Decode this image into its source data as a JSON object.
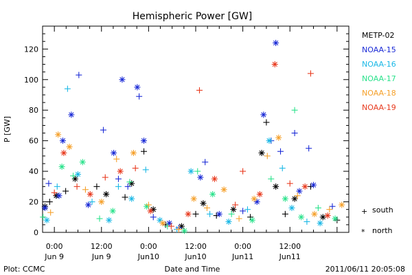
{
  "chart_data": {
    "type": "scatter",
    "title": "Hemispheric Power [GW]",
    "ylabel": "P [GW]",
    "xlabel": "Date and Time",
    "ylim": [
      0,
      135
    ],
    "xlim": [
      -0.125,
      3.125
    ],
    "yticks": [
      0,
      20,
      40,
      60,
      80,
      100,
      120
    ],
    "xticks": [
      {
        "value": 0.0,
        "line1": "0:00",
        "line2": "Jun 9"
      },
      {
        "value": 0.5,
        "line1": "12:00",
        "line2": "Jun 9"
      },
      {
        "value": 1.0,
        "line1": "0:00",
        "line2": "Jun10"
      },
      {
        "value": 1.5,
        "line1": "12:00",
        "line2": "Jun10"
      },
      {
        "value": 2.0,
        "line1": "0:00",
        "line2": "Jun11"
      },
      {
        "value": 2.5,
        "line1": "12:00",
        "line2": "Jun11"
      }
    ],
    "footer_left": "Plot: CCMC",
    "footer_right": "2011/06/11 20:05:08",
    "symbol_legend": [
      {
        "symbol": "plus",
        "glyph": "+",
        "label": "south"
      },
      {
        "symbol": "star",
        "glyph": "*",
        "label": "north"
      }
    ],
    "series": [
      {
        "name": "METP-02",
        "color": "#000000",
        "x": [
          -0.1,
          -0.05,
          0.02,
          0.12,
          0.22,
          0.45,
          0.55,
          0.75,
          0.82,
          0.95,
          1.05,
          1.18,
          1.35,
          1.5,
          1.58,
          1.72,
          1.9,
          2.08,
          2.2,
          2.25,
          2.35,
          2.45,
          2.55,
          2.72,
          2.85,
          3.0
        ],
        "y": [
          17,
          20,
          24,
          27,
          35,
          30,
          25,
          23,
          32,
          53,
          15,
          5,
          4,
          12,
          19,
          11,
          15,
          10,
          52,
          72,
          30,
          12,
          22,
          30,
          10,
          8
        ],
        "sym": [
          "star",
          "plus",
          "star",
          "plus",
          "star",
          "plus",
          "star",
          "plus",
          "star",
          "plus",
          "star",
          "plus",
          "star",
          "plus",
          "star",
          "plus",
          "star",
          "plus",
          "star",
          "plus",
          "star",
          "plus",
          "star",
          "plus",
          "star",
          "plus"
        ]
      },
      {
        "name": "NOAA-15",
        "color": "#1a2ad6",
        "x": [
          -0.1,
          -0.06,
          0.05,
          0.09,
          0.18,
          0.26,
          0.36,
          0.52,
          0.63,
          0.68,
          0.72,
          0.78,
          0.88,
          0.9,
          0.95,
          1.05,
          1.22,
          1.32,
          1.55,
          1.6,
          1.75,
          2.0,
          2.15,
          2.22,
          2.3,
          2.35,
          2.4,
          2.55,
          2.6,
          2.7,
          2.75,
          2.95
        ],
        "y": [
          16,
          32,
          24,
          60,
          77,
          103,
          18,
          67,
          52,
          35,
          100,
          30,
          95,
          89,
          60,
          10,
          6,
          3,
          36,
          46,
          12,
          14,
          20,
          77,
          60,
          124,
          53,
          65,
          27,
          55,
          31,
          17
        ],
        "sym": [
          "star",
          "plus",
          "star",
          "star",
          "star",
          "plus",
          "star",
          "plus",
          "star",
          "plus",
          "star",
          "plus",
          "star",
          "plus",
          "star",
          "plus",
          "star",
          "plus",
          "star",
          "plus",
          "star",
          "plus",
          "star",
          "star",
          "plus",
          "star",
          "plus",
          "plus",
          "star",
          "plus",
          "star",
          "plus"
        ]
      },
      {
        "name": "NOAA-16",
        "color": "#1ab8e6",
        "x": [
          -0.08,
          0.03,
          0.14,
          0.25,
          0.4,
          0.58,
          0.68,
          0.82,
          0.97,
          1.12,
          1.3,
          1.45,
          1.65,
          1.85,
          2.05,
          2.28,
          2.42,
          2.52,
          2.68,
          2.82
        ],
        "y": [
          8,
          30,
          94,
          38,
          20,
          8,
          30,
          22,
          41,
          8,
          2,
          40,
          12,
          7,
          15,
          60,
          42,
          16,
          7,
          6
        ],
        "sym": [
          "star",
          "plus",
          "plus",
          "star",
          "plus",
          "star",
          "plus",
          "star",
          "plus",
          "star",
          "plus",
          "star",
          "plus",
          "star",
          "plus",
          "star",
          "plus",
          "star",
          "plus",
          "star"
        ]
      },
      {
        "name": "NOAA-17",
        "color": "#29e28b",
        "x": [
          -0.12,
          0.08,
          0.2,
          0.3,
          0.48,
          0.62,
          0.8,
          0.98,
          1.2,
          1.38,
          1.52,
          1.68,
          1.88,
          2.1,
          2.3,
          2.45,
          2.55,
          2.62,
          2.8,
          2.98
        ],
        "y": [
          10,
          43,
          37,
          46,
          9,
          14,
          33,
          17,
          4,
          1,
          40,
          25,
          12,
          8,
          35,
          22,
          80,
          10,
          16,
          9
        ],
        "sym": [
          "plus",
          "star",
          "plus",
          "star",
          "plus",
          "star",
          "plus",
          "star",
          "plus",
          "star",
          "plus",
          "star",
          "plus",
          "star",
          "plus",
          "star",
          "plus",
          "star",
          "plus",
          "star"
        ]
      },
      {
        "name": "NOAA-18",
        "color": "#f5a02a",
        "x": [
          -0.04,
          0.04,
          0.16,
          0.33,
          0.5,
          0.66,
          0.84,
          1.0,
          1.15,
          1.32,
          1.48,
          1.62,
          1.8,
          1.96,
          2.12,
          2.26,
          2.38,
          2.58,
          2.76,
          2.92,
          3.05
        ],
        "y": [
          13,
          64,
          56,
          28,
          20,
          48,
          52,
          18,
          6,
          2,
          22,
          16,
          28,
          9,
          22,
          50,
          62,
          24,
          12,
          15,
          18
        ],
        "sym": [
          "plus",
          "star",
          "star",
          "plus",
          "star",
          "plus",
          "star",
          "plus",
          "star",
          "plus",
          "star",
          "plus",
          "star",
          "plus",
          "star",
          "plus",
          "star",
          "plus",
          "star",
          "plus",
          "star"
        ]
      },
      {
        "name": "NOAA-19",
        "color": "#e83a1e",
        "x": [
          0.0,
          0.1,
          0.24,
          0.38,
          0.54,
          0.7,
          0.86,
          1.02,
          1.24,
          1.42,
          1.54,
          1.7,
          1.92,
          2.0,
          2.18,
          2.34,
          2.5,
          2.66,
          2.72,
          2.9
        ],
        "y": [
          26,
          52,
          30,
          25,
          36,
          40,
          42,
          14,
          4,
          12,
          93,
          35,
          18,
          40,
          25,
          110,
          32,
          30,
          104,
          11
        ],
        "sym": [
          "plus",
          "star",
          "plus",
          "star",
          "plus",
          "star",
          "plus",
          "star",
          "plus",
          "star",
          "plus",
          "star",
          "plus",
          "plus",
          "star",
          "star",
          "plus",
          "star",
          "plus",
          "star"
        ]
      }
    ]
  }
}
